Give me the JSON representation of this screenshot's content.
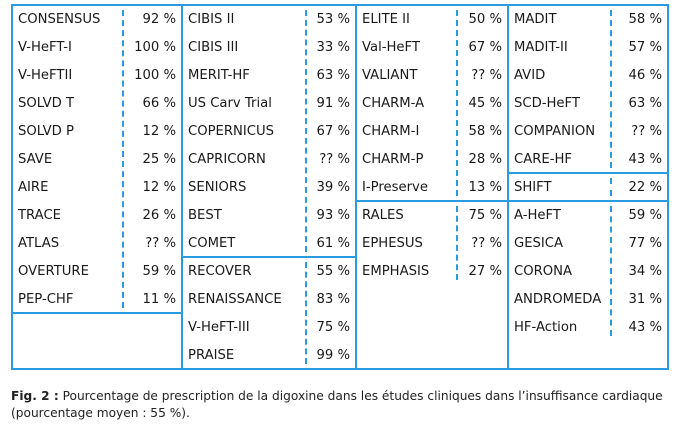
{
  "columns": [
    {
      "groups": [
        {
          "rows": [
            {
              "name": "CONSENSUS",
              "pct": "92 %"
            },
            {
              "name": "V-HeFT-I",
              "pct": "100 %"
            },
            {
              "name": "V-HeFTII",
              "pct": "100 %"
            },
            {
              "name": "SOLVD T",
              "pct": "66 %"
            },
            {
              "name": "SOLVD P",
              "pct": "12 %"
            },
            {
              "name": "SAVE",
              "pct": "25 %"
            },
            {
              "name": "AIRE",
              "pct": "12 %"
            },
            {
              "name": "TRACE",
              "pct": "26 %"
            },
            {
              "name": "ATLAS",
              "pct": "?? %"
            },
            {
              "name": "OVERTURE",
              "pct": "59 %"
            },
            {
              "name": "PEP-CHF",
              "pct": "11 %"
            }
          ]
        },
        {
          "rows": []
        }
      ]
    },
    {
      "groups": [
        {
          "rows": [
            {
              "name": "CIBIS II",
              "pct": "53 %"
            },
            {
              "name": "CIBIS III",
              "pct": "33 %"
            },
            {
              "name": "MERIT-HF",
              "pct": "63 %"
            },
            {
              "name": "US Carv Trial",
              "pct": "91 %"
            },
            {
              "name": "COPERNICUS",
              "pct": "67 %"
            },
            {
              "name": "CAPRICORN",
              "pct": "?? %"
            },
            {
              "name": "SENIORS",
              "pct": "39 %"
            },
            {
              "name": "BEST",
              "pct": "93 %"
            },
            {
              "name": "COMET",
              "pct": "61 %"
            }
          ]
        },
        {
          "rows": [
            {
              "name": "RECOVER",
              "pct": "55 %"
            },
            {
              "name": "RENAISSANCE",
              "pct": "83 %"
            },
            {
              "name": "V-HeFT-III",
              "pct": "75 %"
            },
            {
              "name": "PRAISE",
              "pct": "99 %"
            }
          ]
        }
      ]
    },
    {
      "groups": [
        {
          "rows": [
            {
              "name": "ELITE II",
              "pct": "50 %"
            },
            {
              "name": "Val-HeFT",
              "pct": "67 %"
            },
            {
              "name": "VALIANT",
              "pct": "?? %"
            },
            {
              "name": "CHARM-A",
              "pct": "45 %"
            },
            {
              "name": "CHARM-I",
              "pct": "58 %"
            },
            {
              "name": "CHARM-P",
              "pct": "28 %"
            },
            {
              "name": "I-Preserve",
              "pct": "13 %"
            }
          ]
        },
        {
          "rows": [
            {
              "name": "RALES",
              "pct": "75 %"
            },
            {
              "name": "EPHESUS",
              "pct": "?? %"
            },
            {
              "name": "EMPHASIS",
              "pct": "27 %"
            }
          ]
        }
      ]
    },
    {
      "groups": [
        {
          "rows": [
            {
              "name": "MADIT",
              "pct": "58 %"
            },
            {
              "name": "MADIT-II",
              "pct": "57 %"
            },
            {
              "name": "AVID",
              "pct": "46 %"
            },
            {
              "name": "SCD-HeFT",
              "pct": "63 %"
            },
            {
              "name": "COMPANION",
              "pct": "?? %"
            },
            {
              "name": "CARE-HF",
              "pct": "43 %"
            }
          ]
        },
        {
          "rows": [
            {
              "name": "SHIFT",
              "pct": "22 %"
            }
          ]
        },
        {
          "rows": [
            {
              "name": "A-HeFT",
              "pct": "59 %"
            },
            {
              "name": "GESICA",
              "pct": "77 %"
            },
            {
              "name": "CORONA",
              "pct": "34 %"
            },
            {
              "name": "ANDROMEDA",
              "pct": "31 %"
            },
            {
              "name": "HF-Action",
              "pct": "43 %"
            }
          ]
        }
      ]
    }
  ],
  "caption": {
    "label": "Fig. 2 :",
    "text": " Pourcentage de prescription de la digoxine dans les études cliniques dans l’insuffisance cardiaque (pourcentage moyen : 55 %)."
  },
  "colors": {
    "border": "#2a9be0",
    "text": "#1a1a1a"
  }
}
